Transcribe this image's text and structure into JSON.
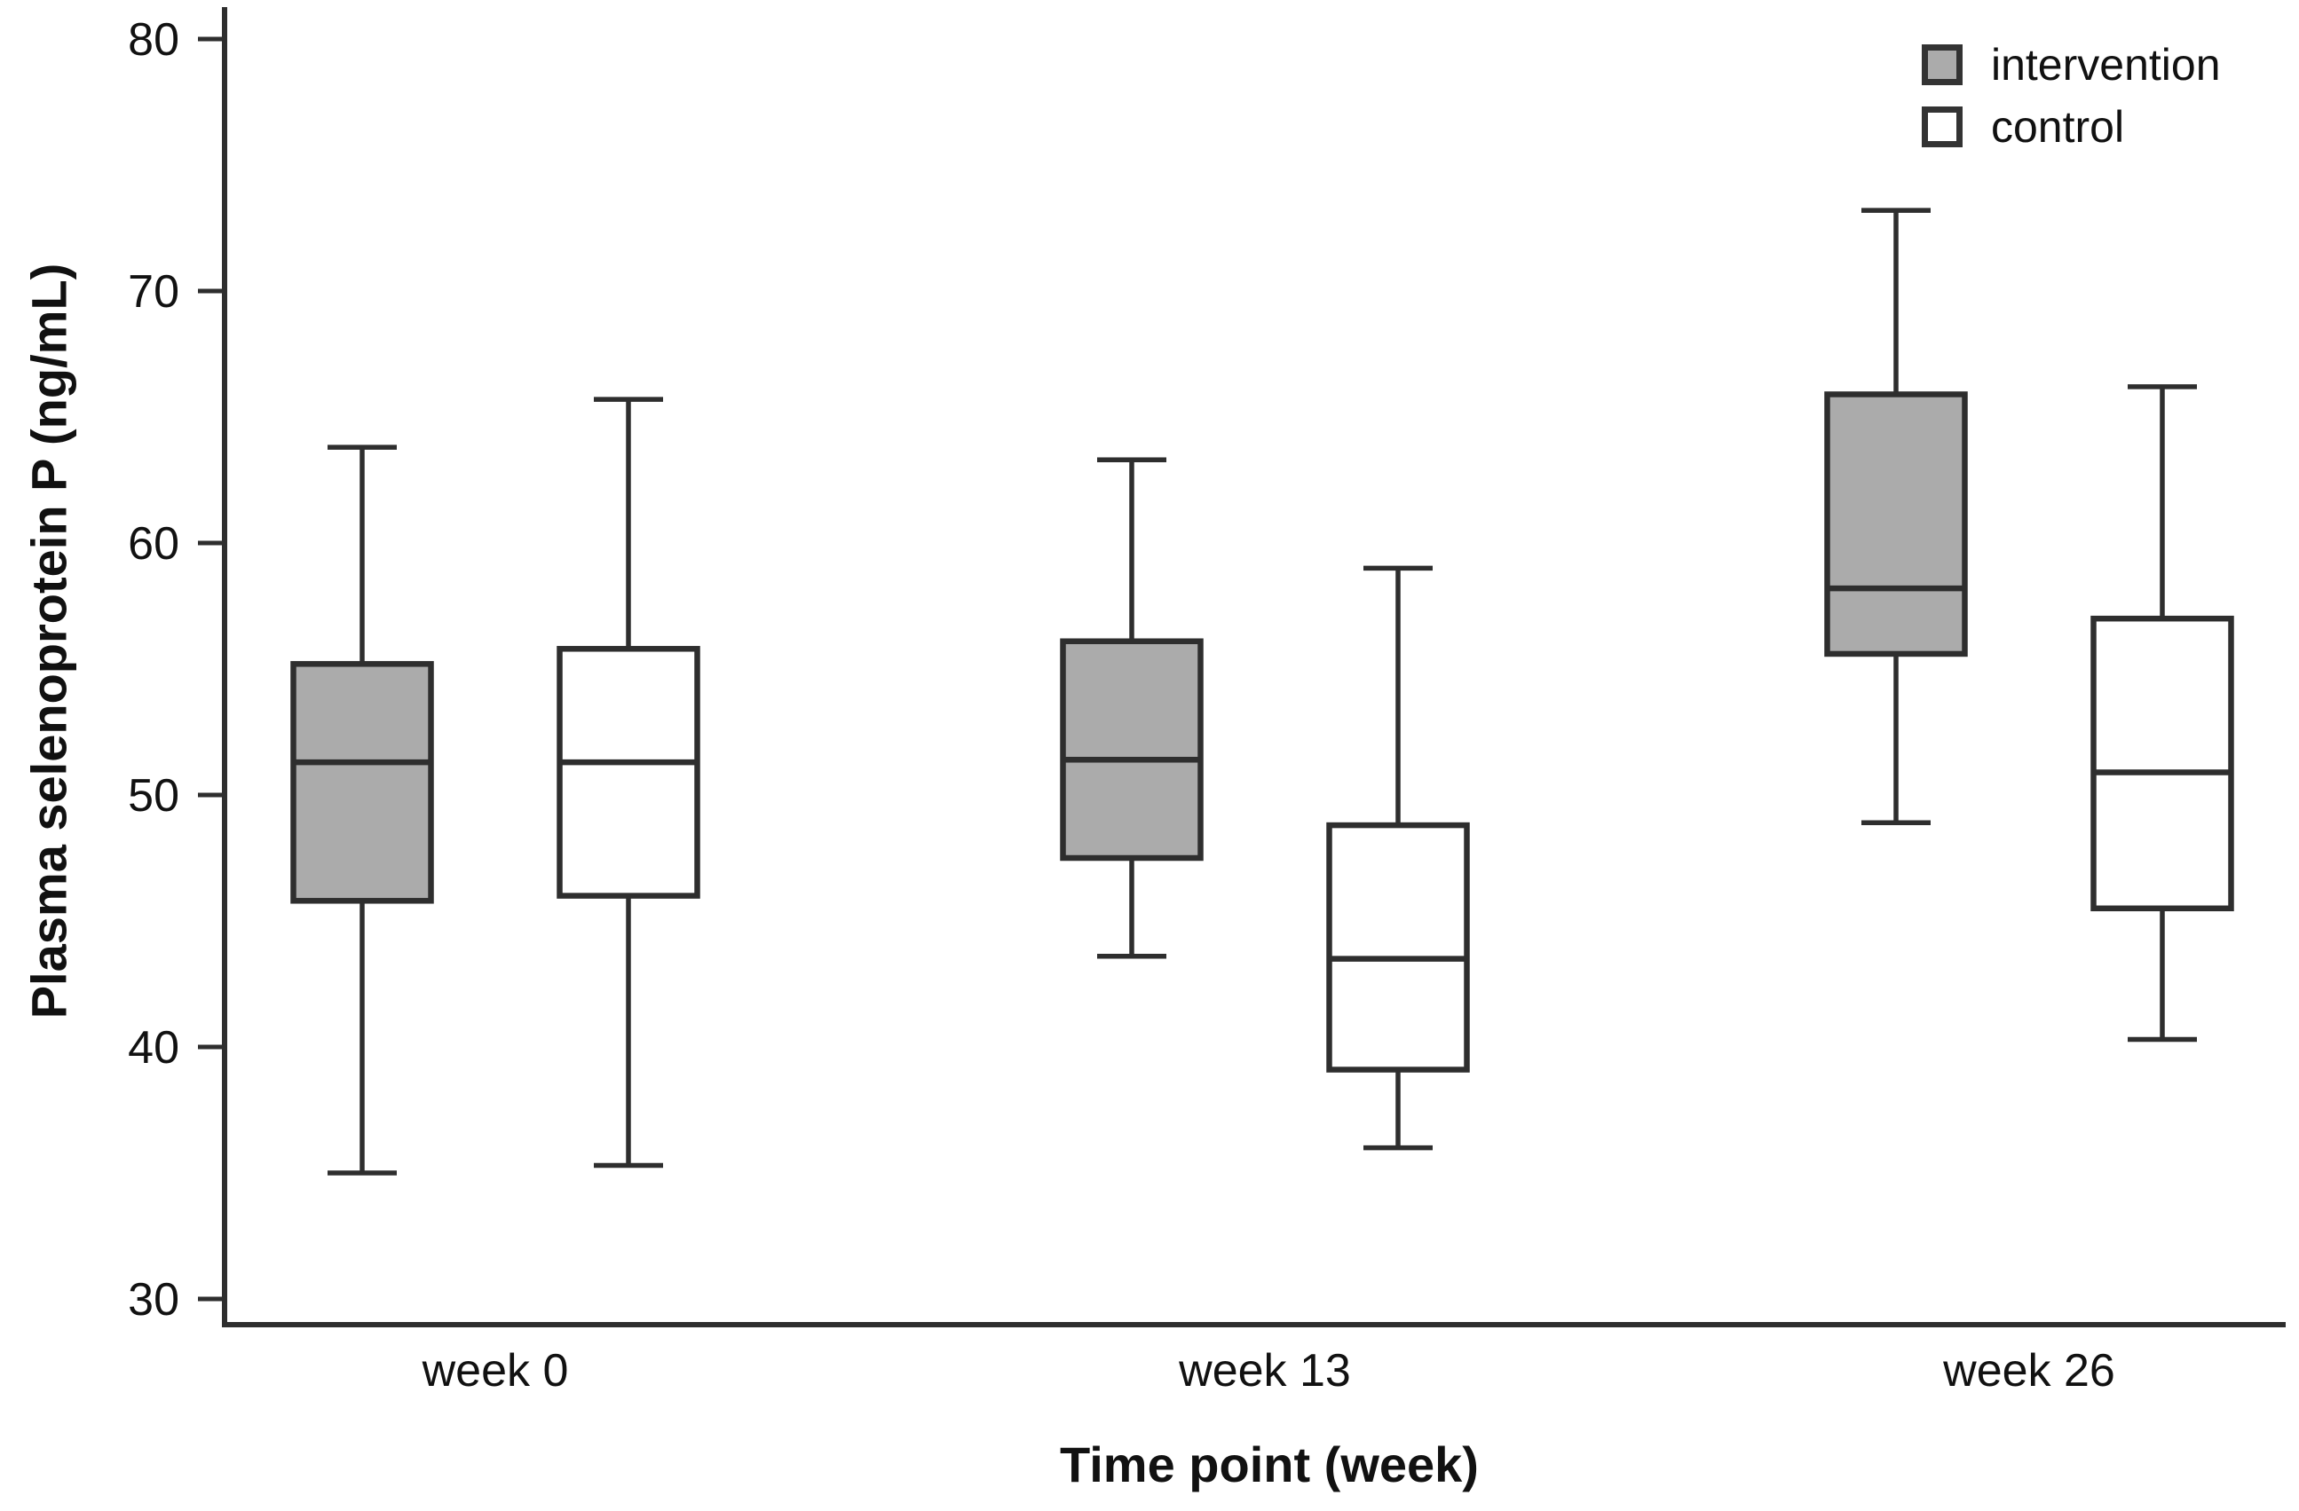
{
  "chart_data": {
    "type": "boxplot",
    "title": "",
    "xlabel": "Time point (week)",
    "ylabel": "Plasma selenoprotein P (ng/mL)",
    "ylim": [
      30,
      80
    ],
    "yticks": [
      30,
      40,
      50,
      60,
      70,
      80
    ],
    "categories": [
      "week 0",
      "week 13",
      "week 26"
    ],
    "grid": false,
    "legend_position": "top-right",
    "line_color": "#2e2e2e",
    "text_color": "#111111",
    "series": [
      {
        "name": "intervention",
        "fill": "#ababab",
        "boxes": [
          {
            "category": "week 0",
            "whisker_low": 35.0,
            "q1": 45.8,
            "median": 51.3,
            "q3": 55.2,
            "whisker_high": 63.8
          },
          {
            "category": "week 13",
            "whisker_low": 43.6,
            "q1": 47.5,
            "median": 51.4,
            "q3": 56.1,
            "whisker_high": 63.3
          },
          {
            "category": "week 26",
            "whisker_low": 48.9,
            "q1": 55.6,
            "median": 58.2,
            "q3": 65.9,
            "whisker_high": 73.2
          }
        ]
      },
      {
        "name": "control",
        "fill": "#ffffff",
        "boxes": [
          {
            "category": "week 0",
            "whisker_low": 35.3,
            "q1": 46.0,
            "median": 51.3,
            "q3": 55.8,
            "whisker_high": 65.7
          },
          {
            "category": "week 13",
            "whisker_low": 36.0,
            "q1": 39.1,
            "median": 43.5,
            "q3": 48.8,
            "whisker_high": 59.0
          },
          {
            "category": "week 26",
            "whisker_low": 40.3,
            "q1": 45.5,
            "median": 50.9,
            "q3": 57.0,
            "whisker_high": 66.2
          }
        ]
      }
    ]
  }
}
